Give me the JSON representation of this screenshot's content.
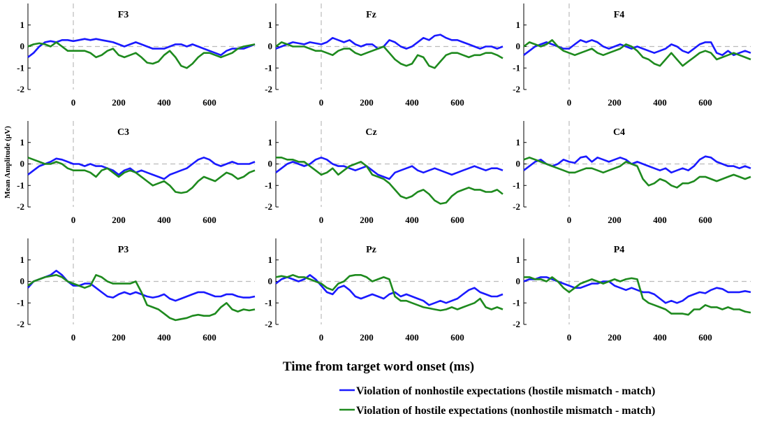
{
  "chart_data": {
    "type": "line",
    "xlabel": "Time from target word onset (ms)",
    "ylabel": "Mean Amplitude (µV)",
    "xlim": [
      -200,
      800
    ],
    "ylim": [
      -2,
      2
    ],
    "xticks": [
      0,
      200,
      400,
      600
    ],
    "yticks": [
      1,
      0,
      -1,
      -2
    ],
    "x": [
      -200,
      -175,
      -150,
      -125,
      -100,
      -75,
      -50,
      -25,
      0,
      25,
      50,
      75,
      100,
      125,
      150,
      175,
      200,
      225,
      250,
      275,
      300,
      325,
      350,
      375,
      400,
      425,
      450,
      475,
      500,
      525,
      550,
      575,
      600,
      625,
      650,
      675,
      700,
      725,
      750,
      775,
      800
    ],
    "series": [
      {
        "name": "Violation of nonhostile expectations (hostile mismatch - match)",
        "color": "#1a1aff"
      },
      {
        "name": "Violation of hostile expectations (nonhostile mismatch - match)",
        "color": "#1e8a1e"
      }
    ],
    "panels": [
      {
        "title": "F3",
        "blue": [
          -0.5,
          -0.3,
          0,
          0.2,
          0.25,
          0.2,
          0.3,
          0.3,
          0.25,
          0.3,
          0.35,
          0.3,
          0.35,
          0.3,
          0.25,
          0.2,
          0.1,
          0,
          0.1,
          0.2,
          0.1,
          0,
          -0.1,
          -0.1,
          -0.1,
          0,
          0.1,
          0.1,
          0,
          0.1,
          0,
          -0.1,
          -0.2,
          -0.3,
          -0.4,
          -0.2,
          -0.1,
          -0.1,
          -0.1,
          0,
          0.1
        ],
        "green": [
          0,
          0.1,
          0.15,
          0.1,
          0,
          0.2,
          0,
          -0.2,
          -0.2,
          -0.2,
          -0.2,
          -0.3,
          -0.5,
          -0.4,
          -0.2,
          -0.1,
          -0.4,
          -0.5,
          -0.4,
          -0.3,
          -0.5,
          -0.75,
          -0.8,
          -0.7,
          -0.4,
          -0.2,
          -0.5,
          -0.9,
          -1.0,
          -0.8,
          -0.5,
          -0.3,
          -0.3,
          -0.4,
          -0.5,
          -0.4,
          -0.3,
          -0.1,
          0,
          0.05,
          0.1
        ]
      },
      {
        "title": "Fz",
        "blue": [
          -0.1,
          0,
          0.1,
          0.2,
          0.15,
          0.1,
          0.2,
          0.15,
          0.1,
          0.2,
          0.4,
          0.3,
          0.2,
          0.3,
          0.1,
          0,
          0.1,
          0.1,
          -0.1,
          0,
          0.3,
          0.2,
          0,
          -0.1,
          0,
          0.2,
          0.4,
          0.3,
          0.5,
          0.55,
          0.4,
          0.3,
          0.3,
          0.2,
          0.1,
          0,
          -0.1,
          0,
          0,
          -0.1,
          0
        ],
        "green": [
          0,
          0.2,
          0.1,
          0,
          0,
          0,
          -0.1,
          -0.2,
          -0.2,
          -0.3,
          -0.4,
          -0.2,
          -0.1,
          -0.1,
          -0.3,
          -0.4,
          -0.3,
          -0.2,
          -0.1,
          0,
          -0.3,
          -0.6,
          -0.8,
          -0.9,
          -0.8,
          -0.4,
          -0.5,
          -0.9,
          -1.0,
          -0.7,
          -0.4,
          -0.3,
          -0.3,
          -0.4,
          -0.5,
          -0.4,
          -0.4,
          -0.3,
          -0.3,
          -0.4,
          -0.55
        ]
      },
      {
        "title": "F4",
        "blue": [
          -0.4,
          -0.2,
          0,
          0.1,
          0.2,
          0.1,
          0,
          -0.1,
          -0.1,
          0.1,
          0.3,
          0.2,
          0.3,
          0.2,
          0,
          -0.1,
          0,
          0.1,
          0,
          -0.1,
          0,
          -0.1,
          -0.2,
          -0.3,
          -0.2,
          -0.1,
          0.1,
          0,
          -0.2,
          -0.3,
          -0.1,
          0.1,
          0.2,
          0.2,
          -0.3,
          -0.4,
          -0.2,
          -0.4,
          -0.3,
          -0.2,
          -0.3
        ],
        "green": [
          0,
          0.2,
          0.1,
          0,
          0.1,
          0.3,
          0,
          -0.2,
          -0.3,
          -0.4,
          -0.3,
          -0.2,
          -0.1,
          -0.3,
          -0.4,
          -0.3,
          -0.2,
          -0.1,
          0.1,
          0,
          -0.2,
          -0.5,
          -0.6,
          -0.8,
          -0.9,
          -0.6,
          -0.3,
          -0.6,
          -0.9,
          -0.7,
          -0.5,
          -0.3,
          -0.2,
          -0.3,
          -0.6,
          -0.5,
          -0.4,
          -0.3,
          -0.4,
          -0.5,
          -0.6
        ]
      },
      {
        "title": "C3",
        "blue": [
          -0.5,
          -0.3,
          -0.1,
          0,
          0.1,
          0.25,
          0.2,
          0.1,
          0,
          0,
          -0.1,
          0,
          -0.1,
          -0.1,
          -0.2,
          -0.3,
          -0.5,
          -0.3,
          -0.2,
          -0.4,
          -0.3,
          -0.4,
          -0.5,
          -0.6,
          -0.7,
          -0.5,
          -0.4,
          -0.3,
          -0.2,
          0,
          0.2,
          0.3,
          0.2,
          0,
          -0.1,
          0,
          0.1,
          0,
          0,
          0,
          0.1
        ],
        "green": [
          0.3,
          0.2,
          0.1,
          0,
          0,
          0.1,
          0,
          -0.2,
          -0.3,
          -0.3,
          -0.3,
          -0.4,
          -0.6,
          -0.3,
          -0.2,
          -0.4,
          -0.6,
          -0.4,
          -0.3,
          -0.4,
          -0.6,
          -0.8,
          -1.0,
          -0.9,
          -0.8,
          -1.0,
          -1.3,
          -1.35,
          -1.3,
          -1.1,
          -0.8,
          -0.6,
          -0.7,
          -0.8,
          -0.6,
          -0.4,
          -0.5,
          -0.7,
          -0.6,
          -0.4,
          -0.3
        ]
      },
      {
        "title": "Cz",
        "blue": [
          -0.4,
          -0.2,
          0,
          0.1,
          0,
          -0.1,
          0,
          0.2,
          0.3,
          0.2,
          0,
          -0.1,
          -0.1,
          -0.2,
          -0.3,
          -0.2,
          -0.1,
          -0.3,
          -0.5,
          -0.6,
          -0.7,
          -0.4,
          -0.3,
          -0.2,
          -0.1,
          -0.3,
          -0.4,
          -0.3,
          -0.2,
          -0.3,
          -0.4,
          -0.5,
          -0.4,
          -0.3,
          -0.2,
          -0.1,
          -0.2,
          -0.3,
          -0.2,
          -0.2,
          -0.3
        ],
        "green": [
          0.3,
          0.3,
          0.2,
          0.2,
          0.1,
          0.1,
          -0.1,
          -0.3,
          -0.5,
          -0.4,
          -0.2,
          -0.5,
          -0.3,
          -0.1,
          0,
          0.1,
          -0.1,
          -0.5,
          -0.6,
          -0.7,
          -0.9,
          -1.2,
          -1.5,
          -1.6,
          -1.5,
          -1.3,
          -1.2,
          -1.4,
          -1.7,
          -1.85,
          -1.8,
          -1.5,
          -1.3,
          -1.2,
          -1.1,
          -1.2,
          -1.2,
          -1.3,
          -1.3,
          -1.2,
          -1.4
        ]
      },
      {
        "title": "C4",
        "blue": [
          -0.3,
          -0.1,
          0.1,
          0.2,
          0,
          -0.1,
          0,
          0.2,
          0.1,
          0.05,
          0.3,
          0.35,
          0.1,
          0.3,
          0.2,
          0.1,
          0.2,
          0.3,
          0.2,
          0,
          0.1,
          0,
          -0.1,
          -0.2,
          -0.3,
          -0.2,
          -0.4,
          -0.3,
          -0.2,
          -0.3,
          -0.1,
          0.2,
          0.35,
          0.3,
          0.1,
          0,
          -0.1,
          -0.1,
          -0.2,
          -0.1,
          -0.2
        ],
        "green": [
          0.2,
          0.3,
          0.2,
          0.1,
          0,
          -0.1,
          -0.2,
          -0.3,
          -0.4,
          -0.4,
          -0.3,
          -0.2,
          -0.2,
          -0.3,
          -0.4,
          -0.3,
          -0.2,
          -0.1,
          0.1,
          0,
          -0.1,
          -0.7,
          -1.0,
          -0.9,
          -0.7,
          -0.8,
          -1.0,
          -1.1,
          -0.9,
          -0.9,
          -0.8,
          -0.6,
          -0.6,
          -0.7,
          -0.8,
          -0.7,
          -0.6,
          -0.5,
          -0.6,
          -0.7,
          -0.6
        ]
      },
      {
        "title": "P3",
        "blue": [
          -0.3,
          0,
          0.1,
          0.2,
          0.3,
          0.5,
          0.3,
          0,
          -0.2,
          -0.2,
          -0.1,
          -0.1,
          -0.3,
          -0.5,
          -0.7,
          -0.75,
          -0.6,
          -0.5,
          -0.6,
          -0.5,
          -0.6,
          -0.7,
          -0.75,
          -0.7,
          -0.6,
          -0.8,
          -0.9,
          -0.8,
          -0.7,
          -0.6,
          -0.5,
          -0.5,
          -0.6,
          -0.7,
          -0.7,
          -0.6,
          -0.6,
          -0.7,
          -0.75,
          -0.75,
          -0.7
        ]
      },
      {
        "title": "Pz",
        "blue": [
          -0.1,
          0.1,
          0.2,
          0.1,
          0,
          0.1,
          0.3,
          0.1,
          -0.2,
          -0.5,
          -0.6,
          -0.3,
          -0.2,
          -0.4,
          -0.7,
          -0.8,
          -0.7,
          -0.6,
          -0.7,
          -0.8,
          -0.6,
          -0.5,
          -0.7,
          -0.6,
          -0.7,
          -0.8,
          -0.9,
          -1.1,
          -1.0,
          -0.9,
          -1.0,
          -0.9,
          -0.8,
          -0.6,
          -0.4,
          -0.3,
          -0.5,
          -0.6,
          -0.7,
          -0.7,
          -0.6
        ],
        "green": [
          0.2,
          0.25,
          0.2,
          0.3,
          0.2,
          0.2,
          0.1,
          0,
          -0.1,
          -0.3,
          -0.4,
          -0.1,
          0,
          0.25,
          0.3,
          0.3,
          0.2,
          0,
          0.1,
          0.2,
          0.1,
          -0.7,
          -0.9,
          -0.9,
          -1.0,
          -1.1,
          -1.2,
          -1.25,
          -1.3,
          -1.35,
          -1.3,
          -1.2,
          -1.3,
          -1.2,
          -1.1,
          -1.0,
          -0.8,
          -1.2,
          -1.3,
          -1.2,
          -1.3
        ]
      },
      {
        "title": "P4",
        "blue": [
          0,
          0.1,
          0.1,
          0.2,
          0.2,
          0.1,
          0,
          -0.1,
          -0.2,
          -0.3,
          -0.3,
          -0.2,
          -0.1,
          -0.1,
          0,
          0,
          -0.2,
          -0.3,
          -0.4,
          -0.3,
          -0.4,
          -0.5,
          -0.5,
          -0.6,
          -0.8,
          -1.0,
          -0.9,
          -1.0,
          -0.9,
          -0.7,
          -0.6,
          -0.5,
          -0.55,
          -0.4,
          -0.3,
          -0.35,
          -0.5,
          -0.5,
          -0.5,
          -0.45,
          -0.5
        ],
        "green": [
          0.2,
          0.2,
          0.1,
          0.1,
          0,
          0.2,
          0,
          -0.3,
          -0.5,
          -0.3,
          -0.1,
          0,
          0.1,
          0,
          -0.1,
          0,
          0.1,
          0,
          0.1,
          0.15,
          0.1,
          -0.8,
          -1.0,
          -1.1,
          -1.2,
          -1.3,
          -1.5,
          -1.5,
          -1.5,
          -1.55,
          -1.3,
          -1.3,
          -1.1,
          -1.2,
          -1.2,
          -1.3,
          -1.2,
          -1.3,
          -1.3,
          -1.4,
          -1.45
        ]
      }
    ],
    "p3_green": [
      -0.2,
      0,
      0.1,
      0.2,
      0.25,
      0.3,
      0.2,
      0,
      -0.1,
      -0.2,
      -0.3,
      -0.2,
      0.3,
      0.2,
      0,
      -0.1,
      -0.1,
      -0.1,
      -0.1,
      0,
      -0.5,
      -1.1,
      -1.2,
      -1.3,
      -1.5,
      -1.7,
      -1.8,
      -1.75,
      -1.7,
      -1.6,
      -1.55,
      -1.6,
      -1.6,
      -1.5,
      -1.2,
      -1.0,
      -1.3,
      -1.4,
      -1.3,
      -1.35,
      -1.3
    ],
    "panel_titles": [
      "F3",
      "Fz",
      "F4",
      "C3",
      "Cz",
      "C4",
      "P3",
      "Pz",
      "P4"
    ]
  }
}
